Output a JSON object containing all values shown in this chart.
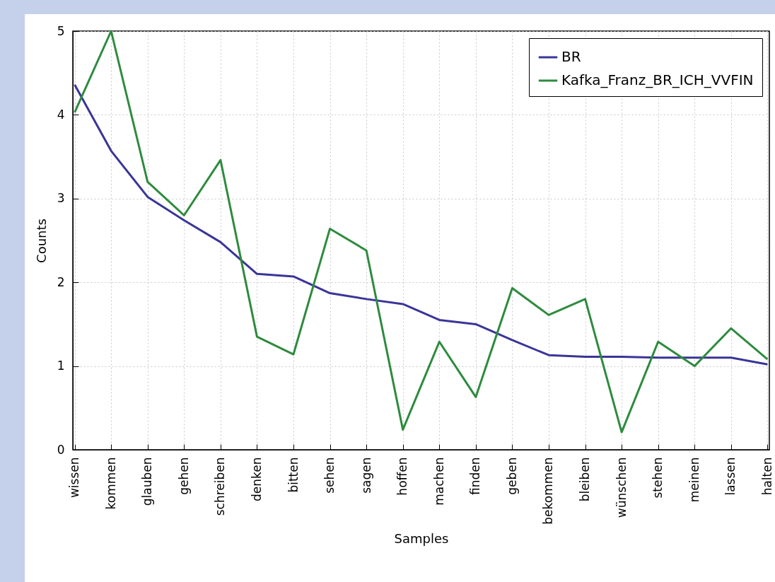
{
  "chart_data": {
    "type": "line",
    "xlabel": "Samples",
    "ylabel": "Counts",
    "categories": [
      "wissen",
      "kommen",
      "glauben",
      "gehen",
      "schreiben",
      "denken",
      "bitten",
      "sehen",
      "sagen",
      "hoffen",
      "machen",
      "finden",
      "geben",
      "bekommen",
      "bleiben",
      "wünschen",
      "stehen",
      "meinen",
      "lassen",
      "halten"
    ],
    "series": [
      {
        "name": "BR",
        "color": "#3a3598",
        "values": [
          4.36,
          3.57,
          3.02,
          2.74,
          2.48,
          2.1,
          2.07,
          1.87,
          1.8,
          1.74,
          1.55,
          1.5,
          1.31,
          1.13,
          1.11,
          1.11,
          1.1,
          1.1,
          1.1,
          1.02
        ]
      },
      {
        "name": "Kafka_Franz_BR_ICH_VVFIN",
        "color": "#2e8b3e",
        "values": [
          4.03,
          5.0,
          3.2,
          2.8,
          3.46,
          1.35,
          1.14,
          2.64,
          2.38,
          0.24,
          1.29,
          0.63,
          1.93,
          1.61,
          1.8,
          0.21,
          1.29,
          1.0,
          1.45,
          1.08
        ]
      }
    ],
    "ylim": [
      0,
      5
    ],
    "yticks": [
      0,
      1,
      2,
      3,
      4,
      5
    ],
    "grid": true,
    "legend": "top right",
    "line_style": "solid",
    "marker": "none"
  }
}
